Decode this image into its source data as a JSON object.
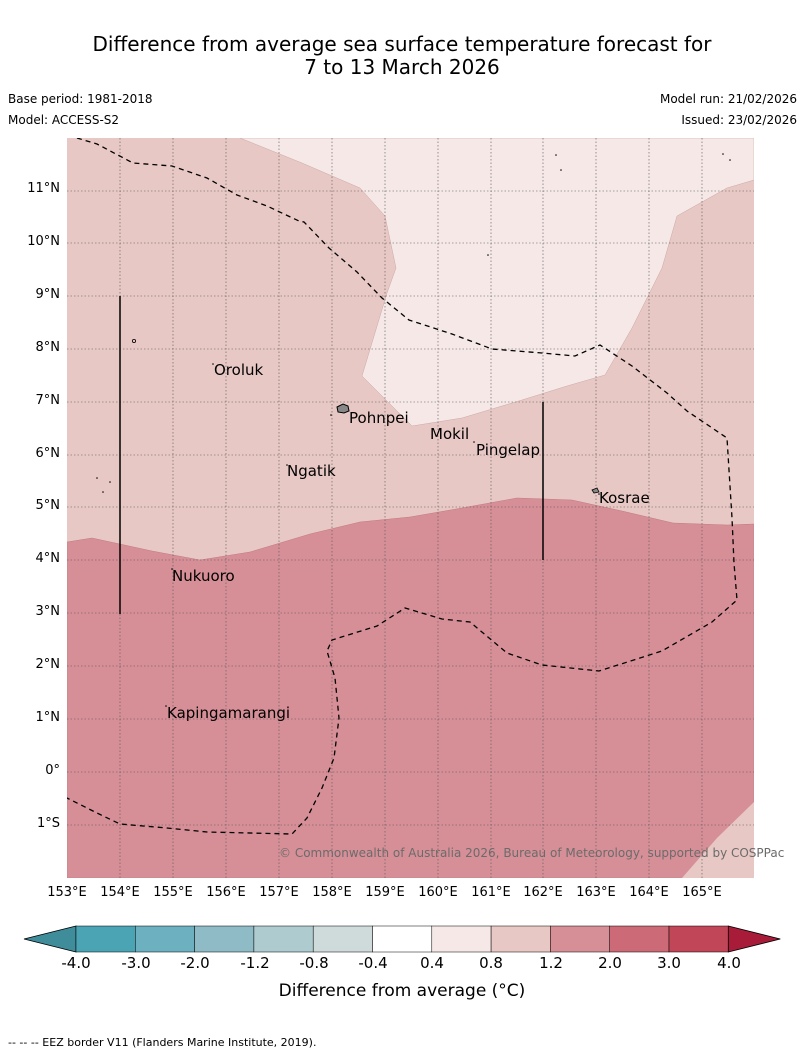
{
  "header": {
    "title_line1": "Difference from average sea surface temperature forecast for",
    "title_line2": "7 to 13 March 2026",
    "base_period": "Base period: 1981-2018",
    "model": "Model: ACCESS-S2",
    "model_run": "Model run: 21/02/2026",
    "issued": "Issued: 23/02/2026"
  },
  "map": {
    "lat_labels": [
      "11°N",
      "10°N",
      "9°N",
      "8°N",
      "7°N",
      "6°N",
      "5°N",
      "4°N",
      "3°N",
      "2°N",
      "1°N",
      "0°",
      "1°S"
    ],
    "lon_labels": [
      "153°E",
      "154°E",
      "155°E",
      "156°E",
      "157°E",
      "158°E",
      "159°E",
      "160°E",
      "161°E",
      "162°E",
      "163°E",
      "164°E",
      "165°E"
    ],
    "places": [
      "Oroluk",
      "Pohnpei",
      "Mokil",
      "Pingelap",
      "Ngatik",
      "Kosrae",
      "Nukuoro",
      "Kapingamarangi"
    ],
    "copyright": "© Commonwealth of Australia 2026, Bureau of Meteorology, supported by COSPPac",
    "colors": {
      "cat_0_4_0_8": "#f5e8e7",
      "cat_0_8_1_2": "#e8c8c4",
      "cat_1_2_2_0": "#d68f97"
    }
  },
  "colorbar": {
    "ticks": [
      "-4.0",
      "-3.0",
      "-2.0",
      "-1.2",
      "-0.8",
      "-0.4",
      "0.4",
      "0.8",
      "1.2",
      "2.0",
      "3.0",
      "4.0"
    ],
    "colors": [
      "#3f8d9b",
      "#4aa4b4",
      "#6db1c0",
      "#8fbbc6",
      "#aecbcf",
      "#cfdadb",
      "#ffffff",
      "#f5e8e7",
      "#e8c8c4",
      "#d68f97",
      "#cc6a77",
      "#c04658",
      "#a81c3a"
    ],
    "title": "Difference from average (°C)"
  },
  "footnote": "--  --  -- EEZ border V11 (Flanders Marine Institute, 2019)."
}
